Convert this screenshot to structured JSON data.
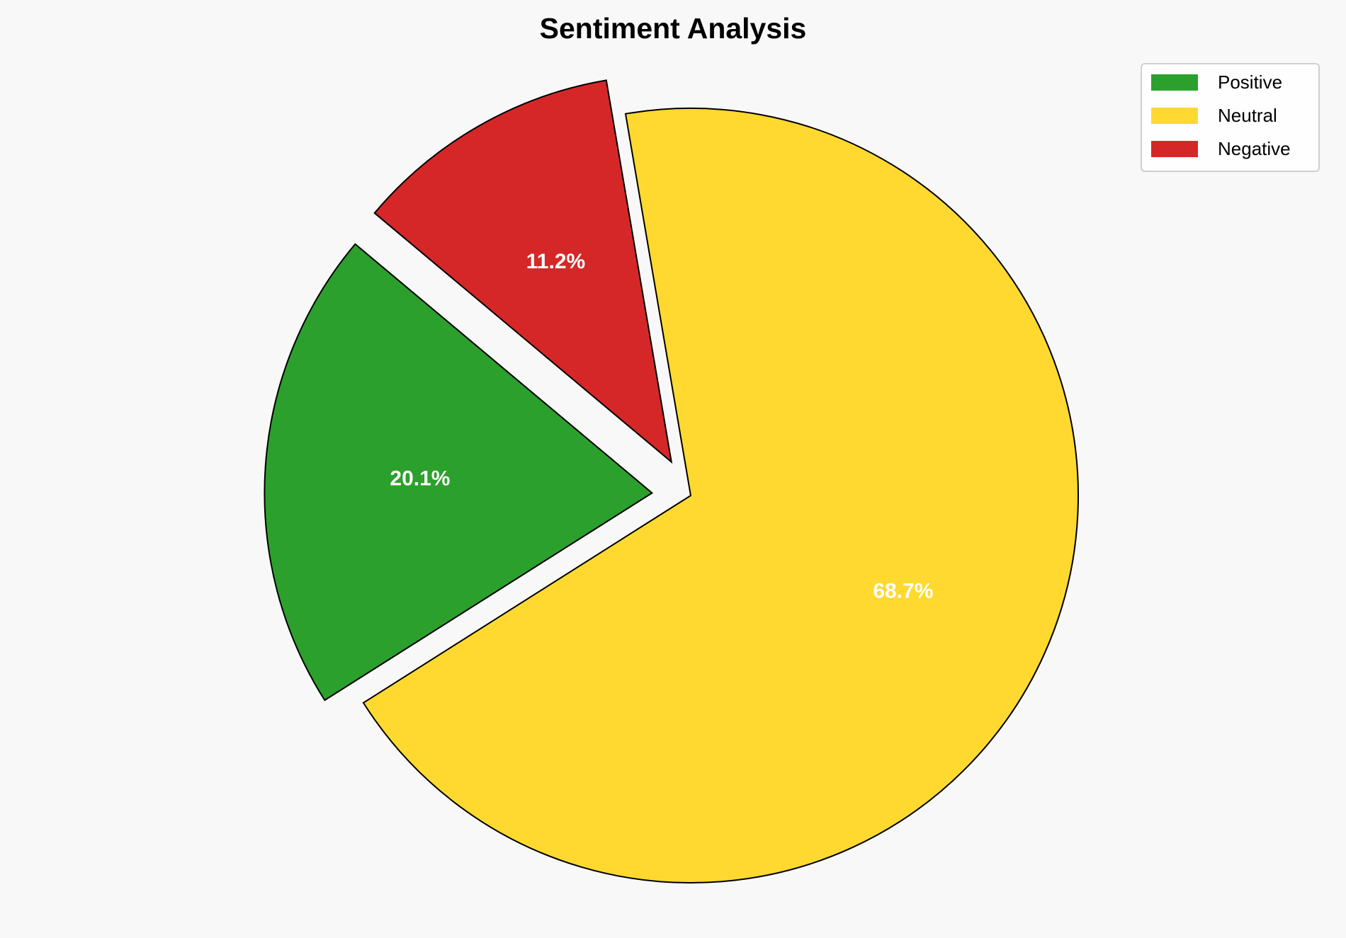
{
  "chart_data": {
    "type": "pie",
    "title": "Sentiment Analysis",
    "categories": [
      "Positive",
      "Neutral",
      "Negative"
    ],
    "values": [
      20.1,
      68.7,
      11.2
    ],
    "labels": [
      "20.1%",
      "68.7%",
      "11.2%"
    ],
    "colors": [
      "#2ca02c",
      "#ffd92f",
      "#d62728"
    ],
    "explode": [
      0.1,
      0,
      0.1
    ],
    "start_angle": 140,
    "direction": "counterclockwise",
    "edge_color": "#000000",
    "legend_placement": "top-right"
  }
}
